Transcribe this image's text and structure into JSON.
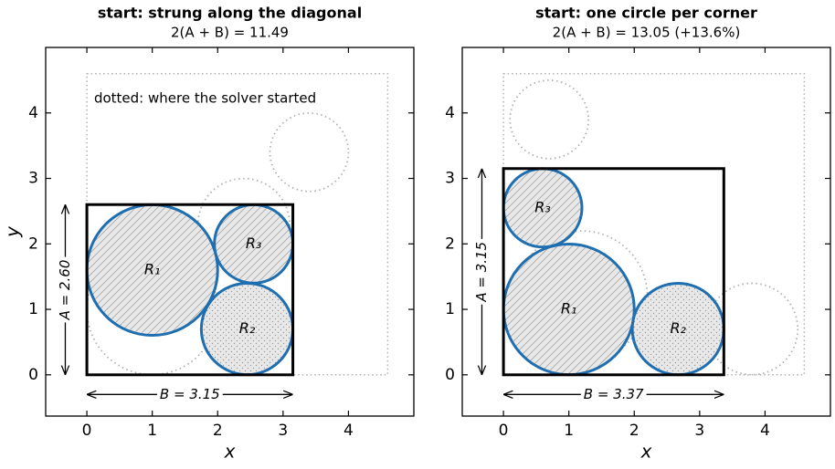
{
  "chart_data": [
    {
      "type": "packing",
      "title": "start: strung along the diagonal",
      "subtitle": "2(A + B) = 11.49",
      "annotation": "dotted: where the solver started",
      "xlabel": "x",
      "ylabel": "y",
      "xlim": [
        -0.63,
        5.0
      ],
      "ylim": [
        -0.63,
        5.0
      ],
      "xticks": [
        0,
        1,
        2,
        3,
        4
      ],
      "yticks": [
        0,
        1,
        2,
        3,
        4
      ],
      "box": {
        "width": 3.15,
        "height": 2.6,
        "width_label": "B = 3.15",
        "height_label": "A = 2.60"
      },
      "start_box": {
        "width": 4.6,
        "height": 4.6
      },
      "edge_color": "#1f6fb0",
      "circles": [
        {
          "name": "R₁",
          "x": 1,
          "y": 1.6,
          "r": 1,
          "hatch": "diagonal"
        },
        {
          "name": "R₂",
          "x": 2.45,
          "y": 0.7,
          "r": 0.7,
          "hatch": "dots"
        },
        {
          "name": "R₃",
          "x": 2.55,
          "y": 2.0,
          "r": 0.6,
          "hatch": "diagonal"
        }
      ],
      "start_circles": [
        {
          "x": 1,
          "y": 1,
          "r": 1
        },
        {
          "x": 2.4,
          "y": 2.3,
          "r": 0.7
        },
        {
          "x": 3.4,
          "y": 3.4,
          "r": 0.6
        }
      ]
    },
    {
      "type": "packing",
      "title": "start: one circle per corner",
      "subtitle": "2(A + B) = 13.05    (+13.6%)",
      "xlabel": "x",
      "xlim": [
        -0.63,
        5.0
      ],
      "ylim": [
        -0.63,
        5.0
      ],
      "xticks": [
        0,
        1,
        2,
        3,
        4
      ],
      "yticks": [
        0,
        1,
        2,
        3,
        4
      ],
      "box": {
        "width": 3.37,
        "height": 3.15,
        "width_label": "B = 3.37",
        "height_label": "A = 3.15"
      },
      "start_box": {
        "width": 4.6,
        "height": 4.6
      },
      "edge_color": "#1f6fb0",
      "circles": [
        {
          "name": "R₁",
          "x": 1,
          "y": 1,
          "r": 1,
          "hatch": "diagonal"
        },
        {
          "name": "R₂",
          "x": 2.67,
          "y": 0.7,
          "r": 0.7,
          "hatch": "dots"
        },
        {
          "name": "R₃",
          "x": 0.6,
          "y": 2.55,
          "r": 0.6,
          "hatch": "diagonal"
        }
      ],
      "start_circles": [
        {
          "x": 0.7,
          "y": 3.9,
          "r": 0.6
        },
        {
          "x": 1.2,
          "y": 1.2,
          "r": 1
        },
        {
          "x": 3.8,
          "y": 0.7,
          "r": 0.7
        }
      ]
    }
  ]
}
